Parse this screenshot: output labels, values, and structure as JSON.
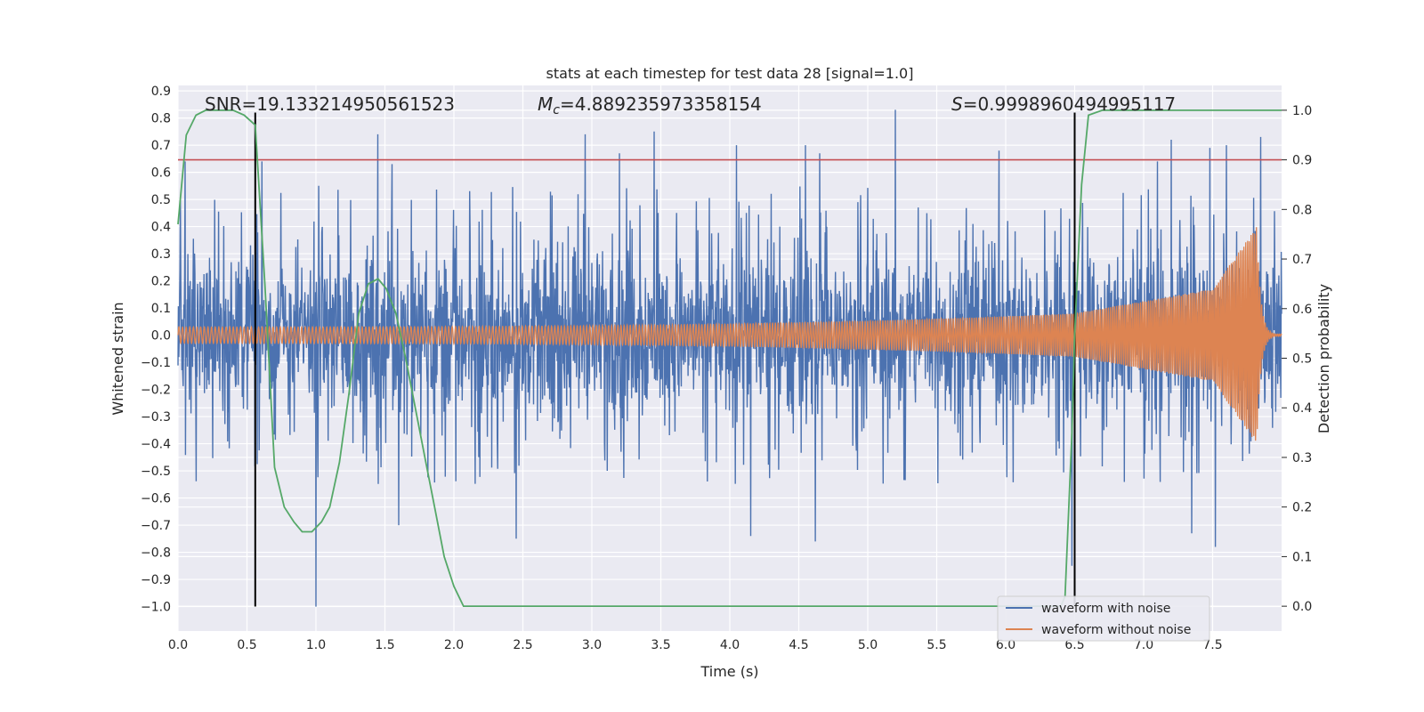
{
  "chart_data": {
    "type": "line",
    "title": "stats at each timestep for test data 28 [signal=1.0]",
    "xlabel": "Time (s)",
    "ylabel": "Whitened strain",
    "y2label": "Detection probability",
    "xlim": [
      0.0,
      8.0
    ],
    "ylim": [
      -1.09,
      0.92
    ],
    "y2lim": [
      -0.05,
      1.05
    ],
    "x_ticks": [
      "0.0",
      "0.5",
      "1.0",
      "1.5",
      "2.0",
      "2.5",
      "3.0",
      "3.5",
      "4.0",
      "4.5",
      "5.0",
      "5.5",
      "6.0",
      "6.5",
      "7.0",
      "7.5"
    ],
    "y_ticks": [
      "0.9",
      "0.8",
      "0.7",
      "0.6",
      "0.5",
      "0.4",
      "0.3",
      "0.2",
      "0.1",
      "0.0",
      "−0.1",
      "−0.2",
      "−0.3",
      "−0.4",
      "−0.5",
      "−0.6",
      "−0.7",
      "−0.8",
      "−0.9",
      "−1.0"
    ],
    "y2_ticks": [
      "1.0",
      "0.9",
      "0.8",
      "0.7",
      "0.6",
      "0.5",
      "0.4",
      "0.3",
      "0.2",
      "0.1",
      "0.0"
    ],
    "grid": true,
    "legend_position": "bottom-right",
    "annotations": {
      "snr": "SNR=19.133214950561523",
      "mc_symbol": "M",
      "mc_sub": "c",
      "mc_value": "=4.889235973358154",
      "s_symbol": "S",
      "s_value": "=0.9998960494995117"
    },
    "threshold": {
      "axis": "right",
      "value": 0.9,
      "color": "#c44e52"
    },
    "vertical_lines": [
      {
        "x": 0.56,
        "y_top": 0.82,
        "y_bottom": -1.0
      },
      {
        "x": 6.5,
        "y_top": 0.82,
        "y_bottom": -1.0
      }
    ],
    "series": [
      {
        "name": "waveform with noise",
        "color": "#4c72b0",
        "axis": "left",
        "kind": "noise",
        "typical_envelope": 0.3,
        "peaks": [
          {
            "x": 0.05,
            "y": 0.64
          },
          {
            "x": 0.56,
            "y": 0.55
          },
          {
            "x": 0.61,
            "y": 0.64
          },
          {
            "x": 1.0,
            "y": -1.0
          },
          {
            "x": 1.02,
            "y": 0.55
          },
          {
            "x": 1.45,
            "y": 0.74
          },
          {
            "x": 1.55,
            "y": 0.63
          },
          {
            "x": 1.6,
            "y": -0.7
          },
          {
            "x": 2.45,
            "y": -0.75
          },
          {
            "x": 2.95,
            "y": 0.74
          },
          {
            "x": 3.2,
            "y": 0.67
          },
          {
            "x": 3.45,
            "y": 0.75
          },
          {
            "x": 4.05,
            "y": 0.7
          },
          {
            "x": 4.15,
            "y": -0.74
          },
          {
            "x": 4.55,
            "y": 0.7
          },
          {
            "x": 4.65,
            "y": 0.67
          },
          {
            "x": 4.62,
            "y": -0.76
          },
          {
            "x": 5.2,
            "y": 0.83
          },
          {
            "x": 5.95,
            "y": 0.68
          },
          {
            "x": 6.48,
            "y": -0.85
          },
          {
            "x": 7.1,
            "y": 0.64
          },
          {
            "x": 7.2,
            "y": 0.72
          },
          {
            "x": 7.35,
            "y": -0.73
          },
          {
            "x": 7.48,
            "y": 0.69
          },
          {
            "x": 7.52,
            "y": -0.78
          },
          {
            "x": 7.6,
            "y": 0.7
          },
          {
            "x": 7.85,
            "y": 0.73
          }
        ]
      },
      {
        "name": "waveform without noise",
        "color": "#dd8452",
        "axis": "left",
        "kind": "chirp",
        "start_amplitude": 0.03,
        "amplitude_at_6_5": 0.08,
        "amplitude_at_7_5": 0.17,
        "peak_time": 7.82,
        "peak_amplitude": 0.4,
        "trough_amplitude": -0.38
      },
      {
        "name": "detection probability",
        "color": "#55a868",
        "axis": "right",
        "x": [
          0.0,
          0.06,
          0.13,
          0.2,
          0.3,
          0.4,
          0.48,
          0.56,
          0.63,
          0.7,
          0.77,
          0.84,
          0.9,
          0.97,
          1.04,
          1.1,
          1.17,
          1.24,
          1.31,
          1.38,
          1.45,
          1.51,
          1.58,
          1.65,
          1.72,
          1.79,
          1.86,
          1.93,
          2.0,
          2.07,
          2.5,
          3.0,
          4.0,
          5.0,
          6.0,
          6.4,
          6.43,
          6.48,
          6.5,
          6.55,
          6.6,
          6.7,
          7.0,
          7.5,
          8.0
        ],
        "values": [
          0.77,
          0.95,
          0.99,
          1.0,
          1.0,
          1.0,
          0.99,
          0.97,
          0.65,
          0.28,
          0.2,
          0.17,
          0.15,
          0.15,
          0.17,
          0.2,
          0.29,
          0.43,
          0.59,
          0.65,
          0.66,
          0.64,
          0.59,
          0.5,
          0.4,
          0.3,
          0.2,
          0.1,
          0.04,
          0.0,
          0.0,
          0.0,
          0.0,
          0.0,
          0.0,
          0.0,
          0.02,
          0.35,
          0.55,
          0.85,
          0.99,
          1.0,
          1.0,
          1.0,
          1.0
        ]
      }
    ]
  }
}
